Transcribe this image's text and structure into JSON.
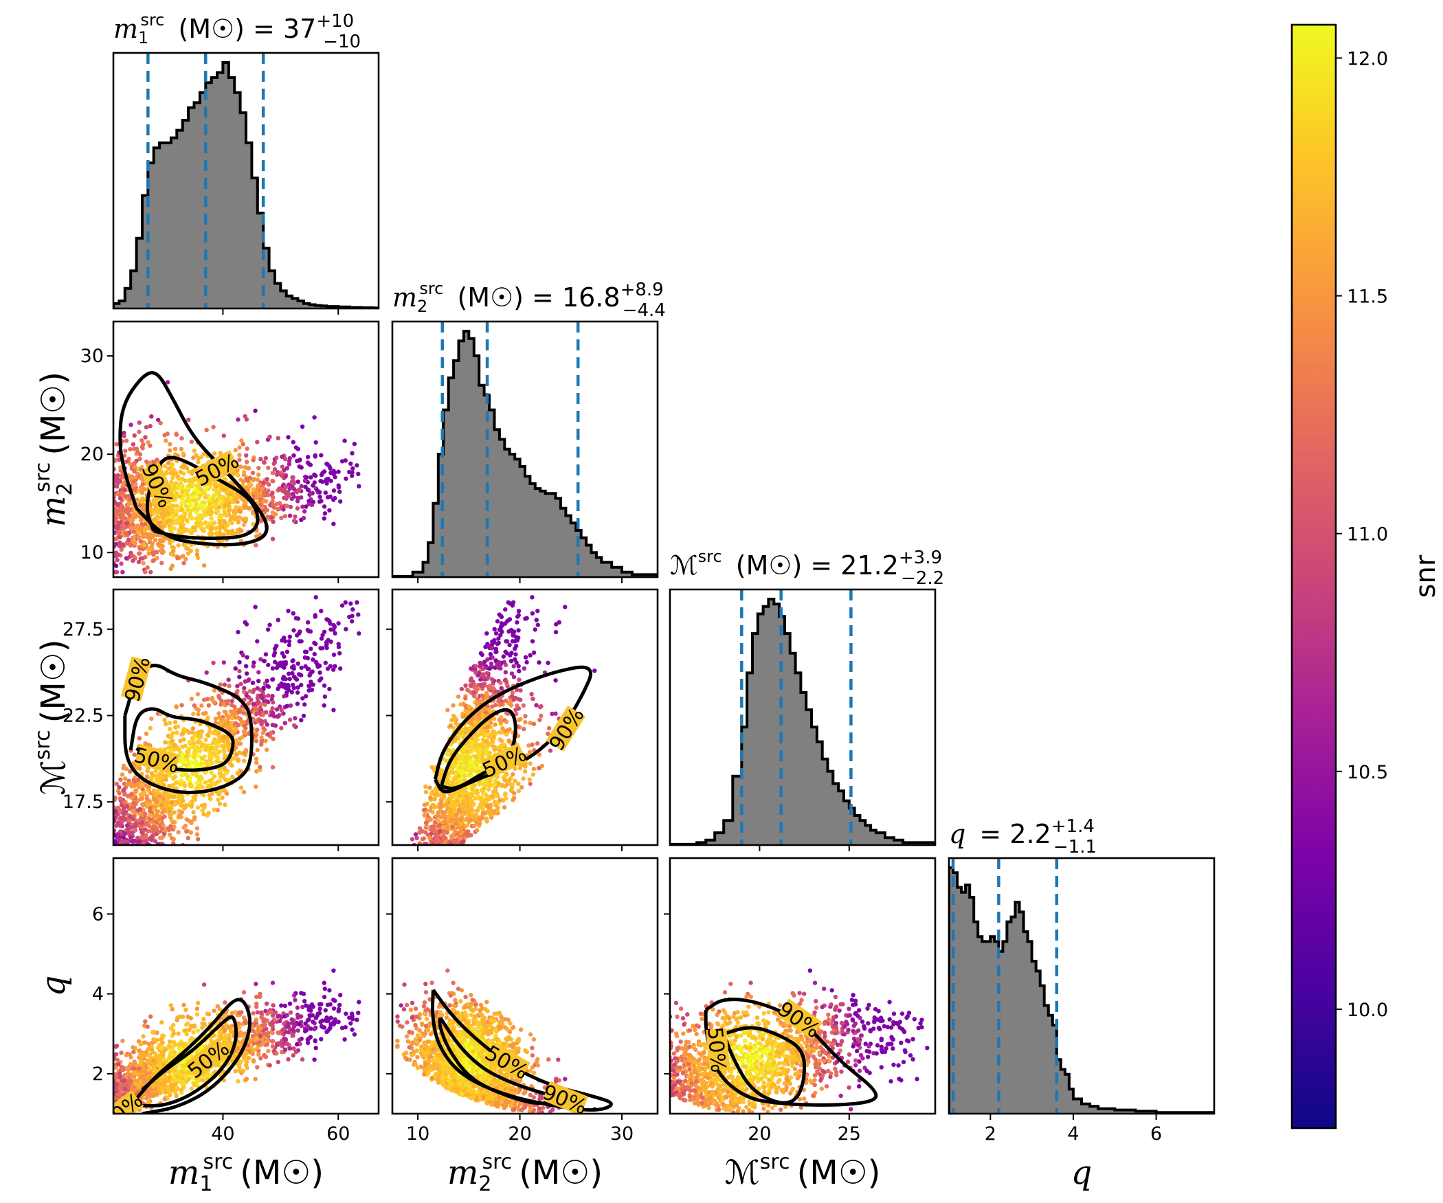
{
  "chart_data": {
    "type": "corner",
    "parameters": [
      {
        "key": "m1",
        "axis_label": "m₁ˢʳᶜ (M☉)",
        "latex_base": "m",
        "sub": "1",
        "sup": "src",
        "unit": "(M☉)",
        "range": [
          21,
          67
        ],
        "ticks": [
          40,
          60
        ]
      },
      {
        "key": "m2",
        "axis_label": "m₂ˢʳᶜ (M☉)",
        "latex_base": "m",
        "sub": "2",
        "sup": "src",
        "unit": "(M☉)",
        "range": [
          7.5,
          33.5
        ],
        "ticks": [
          10,
          20,
          30
        ]
      },
      {
        "key": "mc",
        "axis_label": "ℳˢʳᶜ (M☉)",
        "latex_base": "ℳ",
        "sub": "",
        "sup": "src",
        "unit": "(M☉)",
        "range": [
          15.0,
          29.8
        ],
        "ticks_x": [
          20,
          25
        ],
        "ticks_y": [
          17.5,
          22.5,
          27.5
        ]
      },
      {
        "key": "q",
        "axis_label": "q",
        "latex_base": "q",
        "sub": "",
        "sup": "",
        "unit": "",
        "range": [
          1.0,
          7.4
        ],
        "ticks": [
          2,
          4,
          6
        ]
      }
    ],
    "titles": [
      {
        "param": "m1",
        "prefix_base": "m",
        "prefix_sub": "1",
        "prefix_sup": "src",
        "unit": "(M☉) =",
        "median": "37",
        "plus": "+10",
        "minus": "−10"
      },
      {
        "param": "m2",
        "prefix_base": "m",
        "prefix_sub": "2",
        "prefix_sup": "src",
        "unit": "(M☉) =",
        "median": "16.8",
        "plus": "+8.9",
        "minus": "−4.4"
      },
      {
        "param": "mc",
        "prefix_base": "ℳ",
        "prefix_sub": "",
        "prefix_sup": "src",
        "unit": "(M☉) =",
        "median": "21.2",
        "plus": "+3.9",
        "minus": "−2.2"
      },
      {
        "param": "q",
        "prefix_base": "q",
        "prefix_sub": "",
        "prefix_sup": "",
        "unit": "=",
        "median": "2.2",
        "plus": "+1.4",
        "minus": "−1.1"
      }
    ],
    "marginals": [
      {
        "param": "m1",
        "quantile_lines": [
          27.0,
          37.0,
          47.0
        ],
        "edges": [
          21,
          22,
          23,
          24,
          25,
          26,
          27,
          28,
          29,
          30,
          31,
          32,
          33,
          34,
          35,
          36,
          37,
          38,
          39,
          40,
          41,
          42,
          43,
          44,
          45,
          46,
          47,
          48,
          49,
          50,
          51,
          52,
          53,
          54,
          55,
          56,
          57,
          58,
          60,
          62,
          64,
          66,
          67
        ],
        "counts": [
          0.02,
          0.03,
          0.08,
          0.15,
          0.28,
          0.45,
          0.58,
          0.64,
          0.66,
          0.66,
          0.68,
          0.71,
          0.75,
          0.8,
          0.82,
          0.86,
          0.9,
          0.92,
          0.94,
          0.98,
          0.92,
          0.86,
          0.78,
          0.66,
          0.52,
          0.38,
          0.24,
          0.15,
          0.1,
          0.07,
          0.05,
          0.04,
          0.03,
          0.02,
          0.015,
          0.012,
          0.01,
          0.008,
          0.006,
          0.004,
          0.003,
          0.002
        ]
      },
      {
        "param": "m2",
        "quantile_lines": [
          12.4,
          16.8,
          25.7
        ],
        "edges": [
          7.5,
          9.5,
          10.5,
          11.0,
          11.5,
          12.0,
          12.5,
          13.0,
          13.5,
          14.0,
          14.5,
          15.0,
          15.5,
          16.0,
          16.5,
          17.0,
          17.5,
          18.0,
          18.5,
          19.0,
          19.5,
          20.0,
          20.5,
          21.0,
          21.5,
          22.0,
          22.5,
          23.0,
          23.5,
          24.0,
          24.5,
          25.0,
          25.5,
          26.0,
          26.5,
          27.0,
          27.5,
          28.0,
          29.0,
          30.0,
          31.0,
          33.5
        ],
        "counts": [
          0.003,
          0.02,
          0.06,
          0.14,
          0.3,
          0.5,
          0.68,
          0.81,
          0.88,
          0.96,
          1.0,
          0.97,
          0.9,
          0.78,
          0.74,
          0.68,
          0.6,
          0.56,
          0.52,
          0.5,
          0.48,
          0.45,
          0.41,
          0.38,
          0.36,
          0.35,
          0.34,
          0.34,
          0.32,
          0.28,
          0.25,
          0.22,
          0.19,
          0.16,
          0.13,
          0.1,
          0.08,
          0.06,
          0.04,
          0.02,
          0.01
        ],
        "note": ""
      },
      {
        "param": "mc",
        "quantile_lines": [
          19.0,
          21.2,
          25.1
        ],
        "edges": [
          15.0,
          16.5,
          17.0,
          17.5,
          18.0,
          18.5,
          19.0,
          19.3,
          19.6,
          19.9,
          20.2,
          20.5,
          20.8,
          21.1,
          21.4,
          21.7,
          22.0,
          22.3,
          22.6,
          22.9,
          23.2,
          23.5,
          23.8,
          24.1,
          24.4,
          24.7,
          25.0,
          25.3,
          25.6,
          25.9,
          26.2,
          26.5,
          27.0,
          27.5,
          28.0,
          29.8
        ],
        "counts": [
          0.003,
          0.01,
          0.02,
          0.05,
          0.1,
          0.28,
          0.48,
          0.7,
          0.86,
          0.94,
          0.97,
          1.0,
          0.98,
          0.93,
          0.86,
          0.78,
          0.7,
          0.62,
          0.55,
          0.48,
          0.42,
          0.35,
          0.3,
          0.25,
          0.22,
          0.18,
          0.15,
          0.12,
          0.1,
          0.08,
          0.06,
          0.05,
          0.03,
          0.02,
          0.01
        ]
      },
      {
        "param": "q",
        "quantile_lines": [
          1.1,
          2.2,
          3.6
        ],
        "edges": [
          1.0,
          1.1,
          1.2,
          1.3,
          1.4,
          1.5,
          1.6,
          1.7,
          1.8,
          1.9,
          2.0,
          2.1,
          2.2,
          2.3,
          2.4,
          2.5,
          2.6,
          2.7,
          2.8,
          2.9,
          3.0,
          3.1,
          3.2,
          3.3,
          3.4,
          3.5,
          3.6,
          3.7,
          3.8,
          3.9,
          4.0,
          4.2,
          4.4,
          4.6,
          5.0,
          5.5,
          6.0,
          7.4
        ],
        "counts": [
          1.0,
          0.98,
          0.92,
          0.9,
          0.93,
          0.88,
          0.78,
          0.72,
          0.7,
          0.7,
          0.72,
          0.7,
          0.66,
          0.7,
          0.78,
          0.8,
          0.86,
          0.82,
          0.74,
          0.7,
          0.62,
          0.58,
          0.52,
          0.44,
          0.4,
          0.36,
          0.22,
          0.18,
          0.16,
          0.1,
          0.06,
          0.04,
          0.03,
          0.02,
          0.015,
          0.01,
          0.005
        ]
      }
    ],
    "contour_levels": [
      "50%",
      "90%"
    ],
    "colorbar": {
      "label": "snr",
      "min": 9.75,
      "max": 12.07,
      "ticks": [
        10.0,
        10.5,
        11.0,
        11.5,
        12.0
      ],
      "tick_labels": [
        "10.0",
        "10.5",
        "11.0",
        "11.5",
        "12.0"
      ],
      "colormap": "plasma"
    },
    "colors": {
      "hist_fill": "#808080",
      "quantile_line": "#1f77b4",
      "contour": "#000000"
    }
  }
}
